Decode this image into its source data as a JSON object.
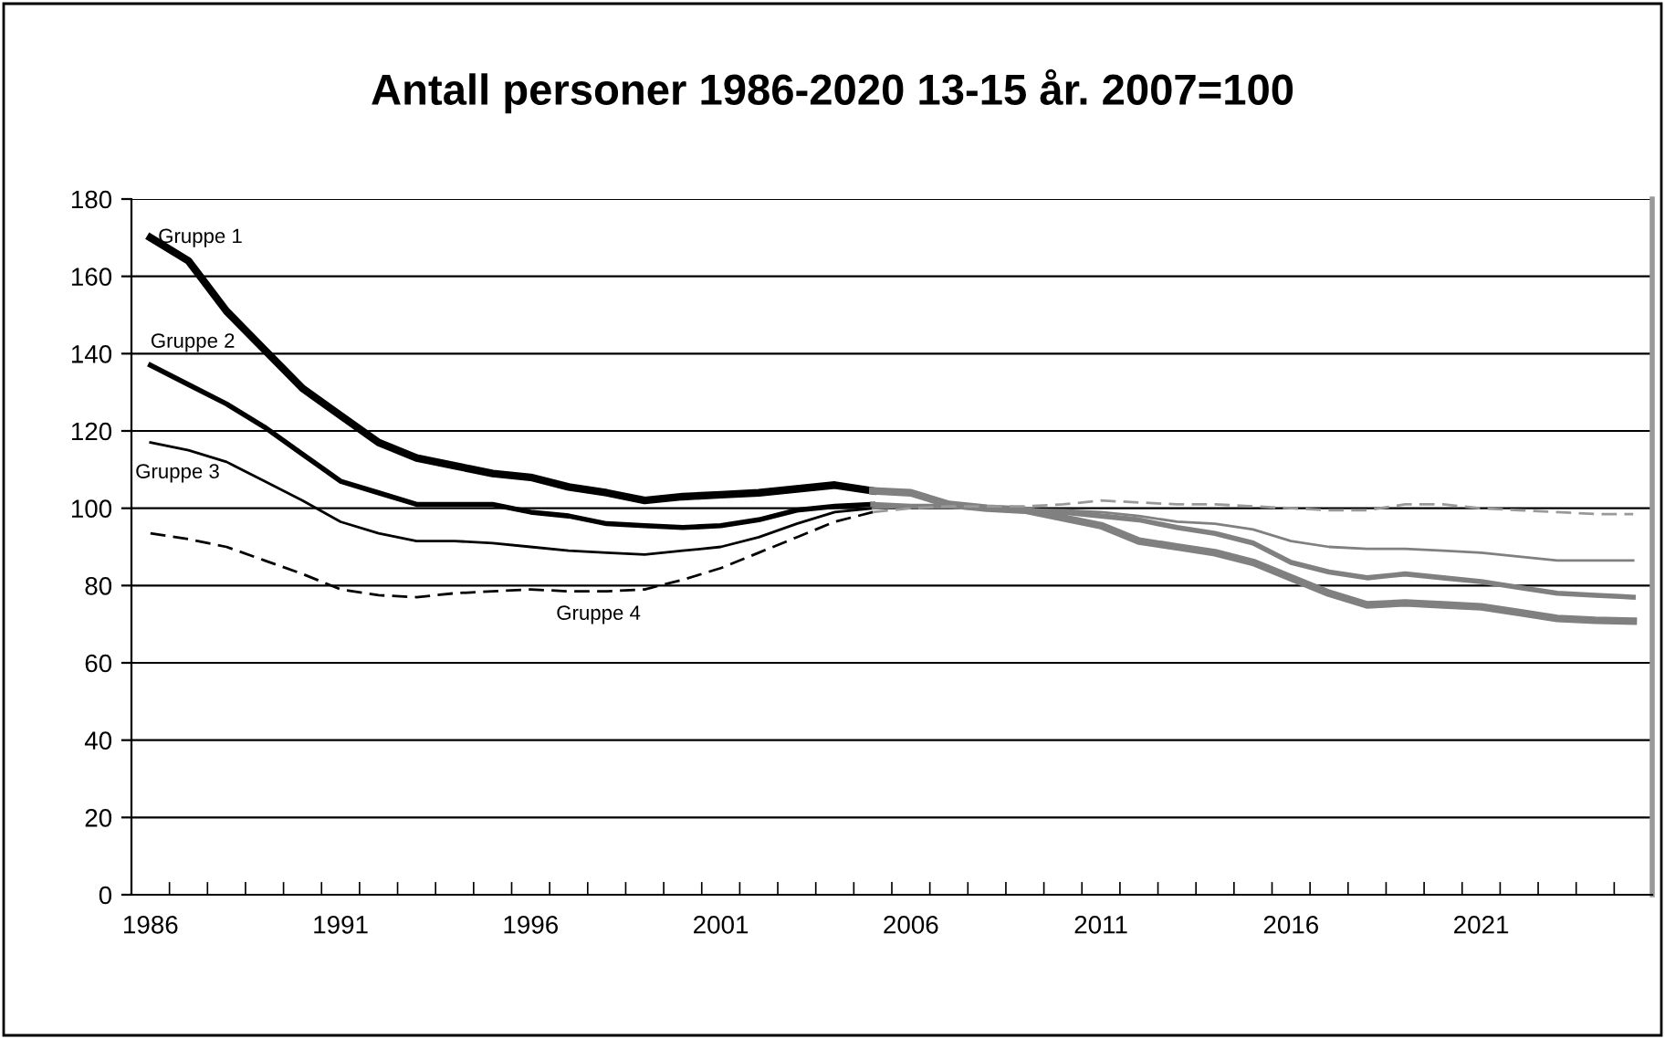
{
  "chart_data": {
    "type": "line",
    "title": "Antall personer 1986-2020 13-15 år. 2007=100",
    "categories": [
      "1986",
      null,
      null,
      null,
      null,
      "1991",
      null,
      null,
      null,
      null,
      "1996",
      null,
      null,
      null,
      null,
      "2001",
      null,
      null,
      null,
      null,
      "2006",
      null,
      null,
      null,
      null,
      "2011",
      null,
      null,
      null,
      null,
      "2016",
      null,
      null,
      null,
      null,
      "2021",
      null,
      null,
      null,
      null
    ],
    "ylim": [
      0,
      180
    ],
    "yticks": [
      0,
      20,
      40,
      60,
      80,
      100,
      120,
      140,
      160,
      180
    ],
    "grid": "y",
    "legend": false,
    "marker": "none",
    "series": [
      {
        "name": "Gruppe 1",
        "color": "#000000",
        "line_style": "solid",
        "values": [
          170,
          164,
          151,
          141,
          131,
          124,
          117,
          113,
          111,
          109,
          108,
          105.5,
          104,
          102,
          103,
          103.5,
          104,
          105,
          106,
          104.5,
          null,
          null,
          null,
          null,
          null,
          null,
          null,
          null,
          null,
          null,
          null,
          null,
          null,
          null,
          null,
          null,
          null,
          null,
          null,
          null
        ]
      },
      {
        "name": "Gruppe 2",
        "color": "#000000",
        "line_style": "solid",
        "values": [
          137,
          132,
          127,
          121,
          114,
          107,
          104,
          101,
          101,
          101,
          99,
          98,
          96,
          95.5,
          95,
          95.5,
          97,
          99.5,
          100.5,
          101,
          null,
          null,
          null,
          null,
          null,
          null,
          null,
          null,
          null,
          null,
          null,
          null,
          null,
          null,
          null,
          null,
          null,
          null,
          null,
          null
        ]
      },
      {
        "name": "Gruppe 3",
        "color": "#000000",
        "line_style": "solid",
        "values": [
          117,
          115,
          112,
          107,
          102,
          96.5,
          93.5,
          91.5,
          91.5,
          91,
          90,
          89,
          88.5,
          88,
          89,
          90,
          92.5,
          96,
          99,
          100,
          null,
          null,
          null,
          null,
          null,
          null,
          null,
          null,
          null,
          null,
          null,
          null,
          null,
          null,
          null,
          null,
          null,
          null,
          null,
          null
        ]
      },
      {
        "name": "Gruppe 4",
        "color": "#000000",
        "line_style": "dashed",
        "values": [
          93.5,
          92,
          90,
          86.5,
          83,
          79,
          77.5,
          77,
          78,
          78.5,
          79,
          78.5,
          78.5,
          79,
          81.5,
          84.5,
          88.5,
          92.5,
          96.5,
          99,
          null,
          null,
          null,
          null,
          null,
          null,
          null,
          null,
          null,
          null,
          null,
          null,
          null,
          null,
          null,
          null,
          null,
          null,
          null,
          null
        ]
      },
      {
        "color": "#808080",
        "line_style": "solid",
        "values": [
          null,
          null,
          null,
          null,
          null,
          null,
          null,
          null,
          null,
          null,
          null,
          null,
          null,
          null,
          null,
          null,
          null,
          null,
          null,
          104.5,
          104,
          101,
          100,
          99.5,
          97.5,
          95.5,
          91.5,
          90,
          88.5,
          86,
          82,
          78,
          75,
          75.5,
          75,
          74.5,
          73,
          71.5,
          71,
          70.8
        ]
      },
      {
        "color": "#808080",
        "line_style": "solid",
        "values": [
          null,
          null,
          null,
          null,
          null,
          null,
          null,
          null,
          null,
          null,
          null,
          null,
          null,
          null,
          null,
          null,
          null,
          null,
          null,
          101,
          100.5,
          100.5,
          100,
          99.5,
          99,
          98,
          97,
          95,
          93.5,
          91,
          86,
          83.5,
          82,
          83,
          82,
          81,
          79.5,
          78,
          77.5,
          77
        ]
      },
      {
        "color": "#808080",
        "line_style": "solid",
        "values": [
          null,
          null,
          null,
          null,
          null,
          null,
          null,
          null,
          null,
          null,
          null,
          null,
          null,
          null,
          null,
          null,
          null,
          null,
          null,
          100,
          100.5,
          100.5,
          100,
          99.5,
          99.5,
          99,
          98,
          96.5,
          96,
          94.5,
          91.5,
          90,
          89.5,
          89.5,
          89,
          88.5,
          87.5,
          86.5,
          86.5,
          86.5
        ]
      },
      {
        "color": "#999999",
        "line_style": "dashed",
        "values": [
          null,
          null,
          null,
          null,
          null,
          null,
          null,
          null,
          null,
          null,
          null,
          null,
          null,
          null,
          null,
          null,
          null,
          null,
          null,
          99,
          100,
          100.5,
          100.5,
          100.5,
          101,
          102,
          101.5,
          101,
          101,
          100.5,
          100,
          99.5,
          99.5,
          101,
          101,
          100,
          99.5,
          99,
          98.5,
          98.5
        ]
      }
    ]
  }
}
